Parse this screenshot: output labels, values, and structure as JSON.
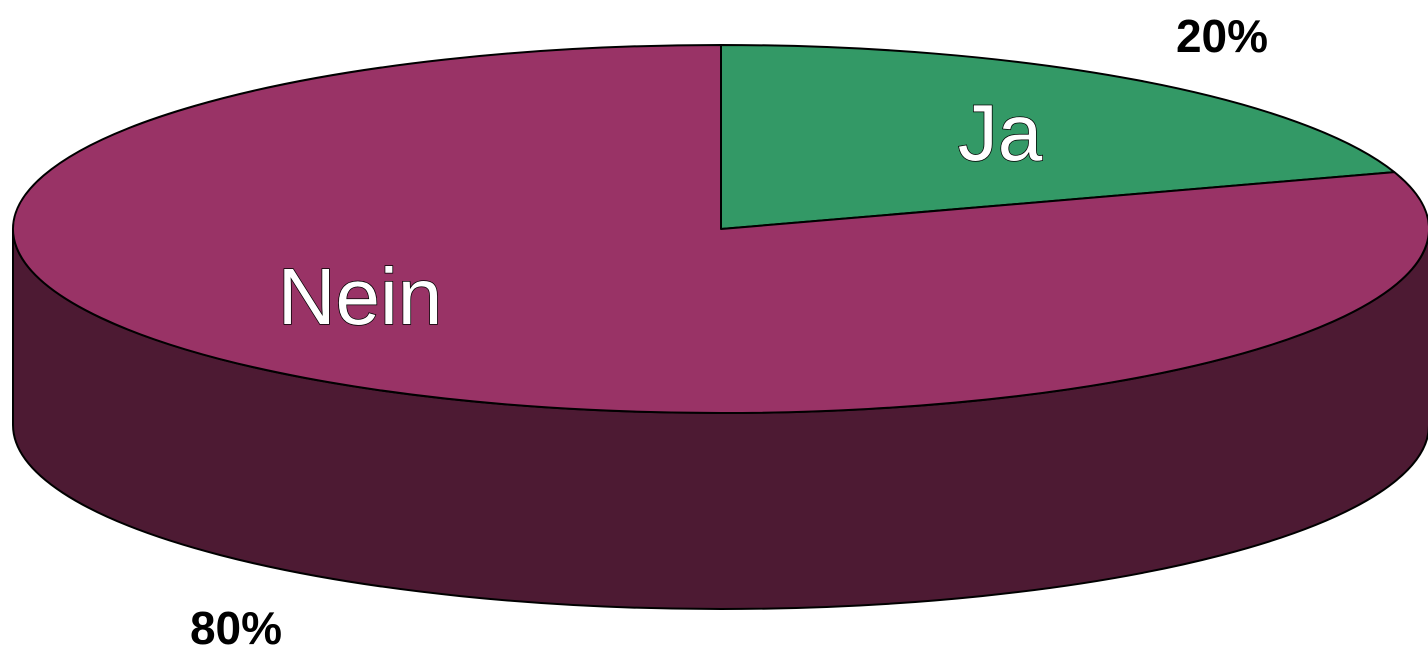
{
  "chart_data": {
    "type": "pie",
    "style": "3d",
    "slices": [
      {
        "label": "Ja",
        "value": 20,
        "value_label": "20%",
        "color": "#339966",
        "side_color": "#1f5c3d"
      },
      {
        "label": "Nein",
        "value": 80,
        "value_label": "80%",
        "color": "#993366",
        "side_color": "#4d1a33"
      }
    ],
    "outline_color": "#000000"
  }
}
